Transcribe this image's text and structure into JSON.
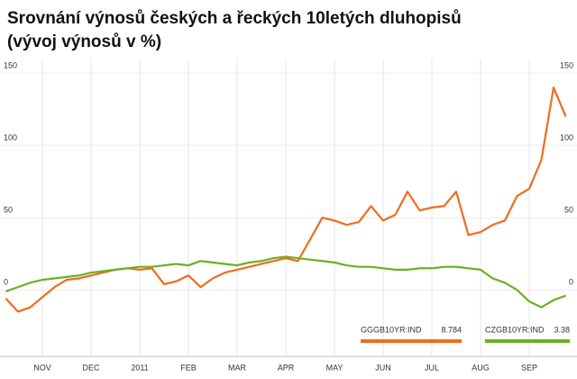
{
  "chart_data": {
    "type": "line",
    "title": "Srovnání výnosů českých a řeckých 10letých dluhopisů",
    "subtitle": "(vývoj výnosů v %)",
    "categories": [
      null,
      null,
      null,
      "NOV",
      null,
      null,
      null,
      "DEC",
      null,
      null,
      null,
      "2011",
      null,
      null,
      null,
      "FEB",
      null,
      null,
      null,
      "MAR",
      null,
      null,
      null,
      "APR",
      null,
      null,
      null,
      "MAY",
      null,
      null,
      null,
      "JUN",
      null,
      null,
      null,
      "JUL",
      null,
      null,
      null,
      "AUG",
      null,
      null,
      null,
      "SEP",
      null,
      null,
      null
    ],
    "series": [
      {
        "name": "GGGB10YR:IND",
        "latest": 8.784,
        "color": "#f26b1d",
        "values": [
          -6,
          -15,
          -12,
          -5,
          2,
          7,
          8,
          10,
          12,
          14,
          15,
          14,
          15,
          4,
          6,
          10,
          2,
          8,
          12,
          14,
          16,
          18,
          20,
          22,
          20,
          35,
          50,
          48,
          45,
          47,
          58,
          48,
          52,
          68,
          55,
          57,
          58,
          68,
          38,
          40,
          45,
          48,
          65,
          70,
          90,
          140,
          120
        ]
      },
      {
        "name": "CZGB10YR:IND",
        "latest": 3.38,
        "color": "#6ab023",
        "values": [
          -1,
          2,
          5,
          7,
          8,
          9,
          10,
          12,
          13,
          14,
          15,
          16,
          16,
          17,
          18,
          17,
          20,
          19,
          18,
          17,
          19,
          20,
          22,
          23,
          22,
          21,
          20,
          19,
          17,
          16,
          16,
          15,
          14,
          14,
          15,
          15,
          16,
          16,
          15,
          14,
          8,
          5,
          0,
          -8,
          -12,
          -7,
          -4
        ]
      }
    ],
    "ylim": [
      -46,
      160
    ],
    "yticks": [
      0,
      50,
      100,
      150
    ],
    "grid": true
  }
}
